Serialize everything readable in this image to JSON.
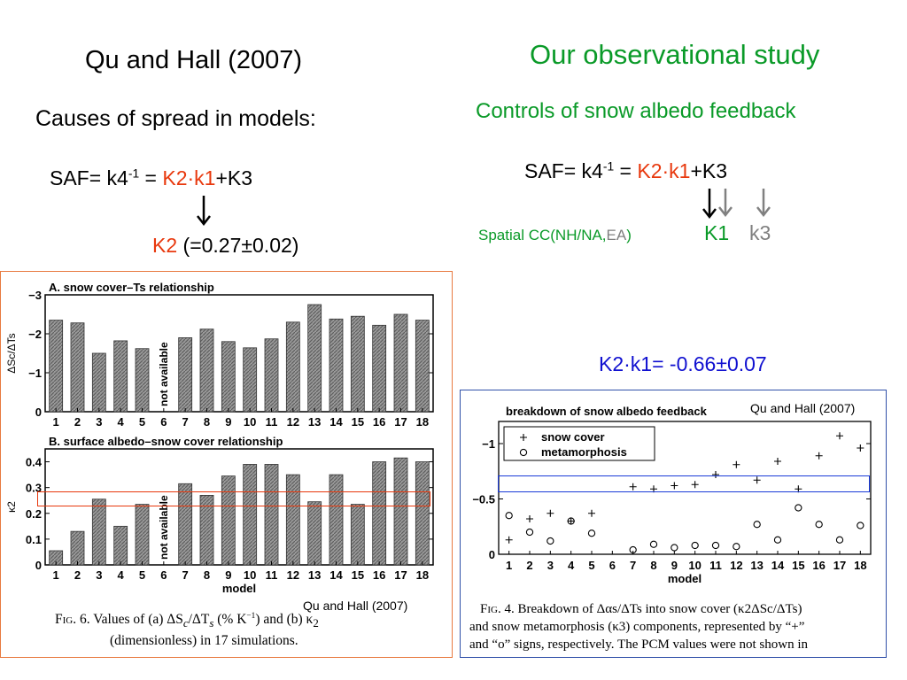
{
  "left": {
    "title": "Qu and Hall (2007)",
    "subtitle": "Causes of spread in models:",
    "eq": {
      "p1": "SAF= k4",
      "exp": "-1",
      "p2": " = ",
      "k2k1": "K2·k1",
      "p3": "+K3"
    },
    "k2_label": "K2",
    "k2_value": " (=0.27±0.02)"
  },
  "right": {
    "title": "Our observational study",
    "subtitle": "Controls of snow albedo feedback",
    "eq": {
      "p1": "SAF= k4",
      "exp": "-1",
      "p2": " = ",
      "k2k1": "K2·k1",
      "p3": "+K3"
    },
    "spatial_a": "Spatial CC(NH/NA,",
    "spatial_ea": "EA",
    "spatial_b": ")",
    "K1": "K1",
    "k3": "k3",
    "result": "K2·k1= -0.66±0.07"
  },
  "fig6": {
    "credit": "Qu and Hall (2007)",
    "caption_fig": "Fig.",
    "caption_a": " 6. Values of (a) ΔS",
    "caption_a2": "/ΔT",
    "caption_a3": " (% K",
    "caption_a4": "−1",
    "caption_a5": ") and (b) κ",
    "caption_a6": "2",
    "caption_b": "(dimensionless) in 17 simulations."
  },
  "fig4": {
    "credit": "Qu and Hall (2007)",
    "caption_fig": "Fig.",
    "caption_l1": " 4. Breakdown of Δαs/ΔTs into snow cover (κ2ΔSc/ΔTs)",
    "caption_l2": "and snow metamorphosis (κ3) components, represented by “+”",
    "caption_l3": "and “o” signs, respectively. The PCM values were not shown in"
  },
  "chart_data": [
    {
      "type": "bar",
      "title": "A. snow cover–Ts relationship",
      "ylabel": "ΔSc/ΔTs",
      "categories": [
        "1",
        "2",
        "3",
        "4",
        "5",
        "6",
        "7",
        "8",
        "9",
        "10",
        "11",
        "12",
        "13",
        "14",
        "15",
        "16",
        "17",
        "18"
      ],
      "values": [
        -2.35,
        -2.28,
        -1.5,
        -1.82,
        -1.62,
        null,
        -1.9,
        -2.12,
        -1.8,
        -1.64,
        -1.87,
        -2.3,
        -2.75,
        -2.38,
        -2.45,
        -2.22,
        -2.5,
        -2.35
      ],
      "ylim": [
        0,
        -3
      ],
      "yticks": [
        "0",
        "−1",
        "−2",
        "−3"
      ],
      "na_label": "not available"
    },
    {
      "type": "bar",
      "title": "B. surface albedo–snow cover relationship",
      "ylabel": "κ2",
      "xlabel": "model",
      "categories": [
        "1",
        "2",
        "3",
        "4",
        "5",
        "6",
        "7",
        "8",
        "9",
        "10",
        "11",
        "12",
        "13",
        "14",
        "15",
        "16",
        "17",
        "18"
      ],
      "values": [
        0.055,
        0.13,
        0.255,
        0.15,
        0.235,
        null,
        0.315,
        0.27,
        0.345,
        0.39,
        0.39,
        0.35,
        0.245,
        0.35,
        0.235,
        0.4,
        0.415,
        0.4
      ],
      "ylim": [
        0,
        0.45
      ],
      "yticks": [
        "0",
        "0.1",
        "0.2",
        "0.3",
        "0.4"
      ],
      "na_label": "not available"
    },
    {
      "type": "scatter",
      "title": "breakdown of snow albedo feedback",
      "xlabel": "model",
      "categories": [
        "1",
        "2",
        "3",
        "4",
        "5",
        "6",
        "7",
        "8",
        "9",
        "10",
        "11",
        "12",
        "13",
        "14",
        "15",
        "16",
        "17",
        "18"
      ],
      "ylim": [
        0,
        -1.2
      ],
      "yticks": [
        "0",
        "−0.5",
        "−1"
      ],
      "series": [
        {
          "name": "snow cover",
          "marker": "+",
          "values": [
            -0.13,
            -0.32,
            -0.37,
            -0.3,
            -0.37,
            null,
            -0.61,
            -0.59,
            -0.62,
            -0.63,
            -0.72,
            -0.81,
            -0.67,
            -0.84,
            -0.59,
            -0.89,
            -1.07,
            -0.96
          ]
        },
        {
          "name": "metamorphosis",
          "marker": "o",
          "values": [
            -0.35,
            -0.2,
            -0.12,
            -0.3,
            -0.19,
            null,
            -0.04,
            -0.09,
            -0.06,
            -0.08,
            -0.08,
            -0.07,
            -0.27,
            -0.13,
            -0.42,
            -0.27,
            -0.13,
            -0.26
          ]
        }
      ]
    }
  ]
}
